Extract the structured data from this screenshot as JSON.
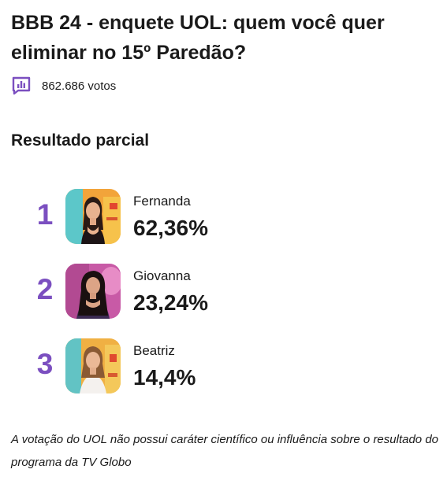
{
  "poll": {
    "title": "BBB 24 - enquete UOL: quem você quer eliminar no 15º Paredão?",
    "votes_icon": "poll-chart-icon",
    "votes_count": "862.686 votos",
    "section_title": "Resultado parcial",
    "accent_color": "#7b4fc0",
    "candidates": [
      {
        "rank": "1",
        "name": "Fernanda",
        "percent": "62,36%"
      },
      {
        "rank": "2",
        "name": "Giovanna",
        "percent": "23,24%"
      },
      {
        "rank": "3",
        "name": "Beatriz",
        "percent": "14,4%"
      }
    ],
    "disclaimer": "A votação do UOL não possui caráter científico ou influência sobre o resultado do programa da TV Globo"
  }
}
